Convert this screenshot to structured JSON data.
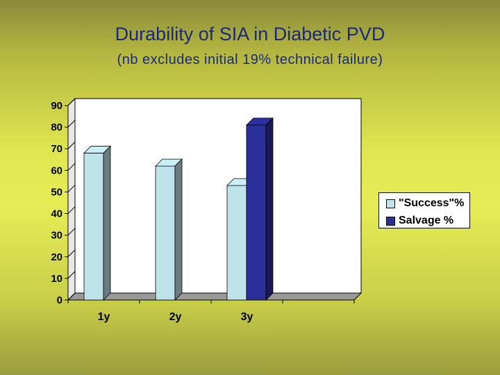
{
  "title": "Durability of SIA in Diabetic PVD",
  "subtitle": "(nb excludes initial 19% technical failure)",
  "chart_data": {
    "type": "bar",
    "categories": [
      "1y",
      "2y",
      "3y",
      ""
    ],
    "series": [
      {
        "name": "\"Success\"%",
        "color": "#bfe3ea",
        "values": [
          68,
          62,
          53,
          null
        ]
      },
      {
        "name": "Salvage %",
        "color": "#2a2f9a",
        "values": [
          null,
          null,
          81,
          null
        ]
      }
    ],
    "ylim": [
      0,
      90
    ],
    "yticks": [
      0,
      10,
      20,
      30,
      40,
      50,
      60,
      70,
      80,
      90
    ],
    "xlabel": "",
    "ylabel": "",
    "grid": false,
    "legend": "right"
  }
}
